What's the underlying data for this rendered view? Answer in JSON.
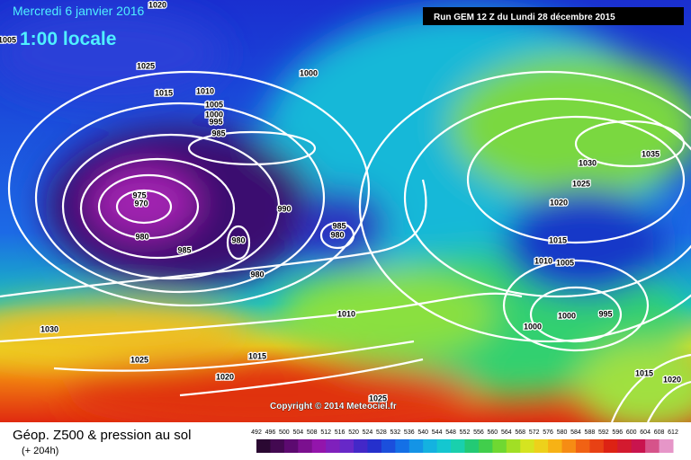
{
  "header": {
    "date": "Mercredi 6 janvier 2016",
    "time": "1:00 locale",
    "run": "Run GEM 12 Z du Lundi 28 décembre 2015"
  },
  "map": {
    "isobar_labels": [
      "1020",
      "1005",
      "1025",
      "1000",
      "1015",
      "1010",
      "1005",
      "1000",
      "995",
      "985",
      "975",
      "970",
      "990",
      "985",
      "980",
      "980",
      "980",
      "985",
      "980",
      "1030",
      "1035",
      "1025",
      "1020",
      "1015",
      "1010",
      "1005",
      "1010",
      "1000",
      "995",
      "1000",
      "1030",
      "1025",
      "1015",
      "1020",
      "1015",
      "1020",
      "1025"
    ],
    "copyright": "Copyright © 2014 Meteociel.fr"
  },
  "legend": {
    "title": "Géop. Z500 & pression au sol",
    "lead": "(+ 204h)",
    "levels": [
      492,
      496,
      500,
      504,
      508,
      512,
      516,
      520,
      524,
      528,
      532,
      536,
      540,
      544,
      548,
      552,
      556,
      560,
      564,
      568,
      572,
      576,
      580,
      584,
      588,
      592,
      596,
      600,
      604,
      608,
      612
    ]
  }
}
